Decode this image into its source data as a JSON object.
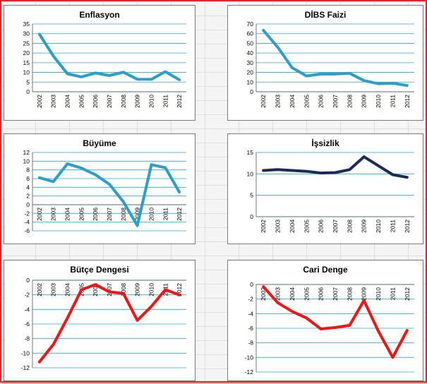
{
  "colors": {
    "blue": "#2b9fc9",
    "navy": "#1b2a5a",
    "red": "#f01414",
    "grid": "#2aa7cf"
  },
  "chart_data": [
    {
      "type": "line",
      "title": "Enflasyon",
      "color": "#2b9fc9",
      "x": [
        "2002",
        "2003",
        "2004",
        "2005",
        "2006",
        "2007",
        "2008",
        "2009",
        "2010",
        "2011",
        "2012"
      ],
      "values": [
        29.7,
        18.4,
        9.3,
        7.7,
        9.7,
        8.4,
        10.1,
        6.5,
        6.4,
        10.4,
        6.2
      ],
      "ylim": [
        0,
        35
      ],
      "yticks": [
        "0",
        "5",
        "10",
        "15",
        "20",
        "25",
        "30",
        "35"
      ],
      "xlabel_position": "below",
      "grid": true
    },
    {
      "type": "line",
      "title": "DİBS Faizi",
      "color": "#2b9fc9",
      "x": [
        "2002",
        "2003",
        "2004",
        "2005",
        "2006",
        "2007",
        "2008",
        "2009",
        "2010",
        "2011",
        "2012"
      ],
      "values": [
        63.5,
        46,
        24.9,
        16.3,
        18.3,
        18.3,
        19.1,
        11.5,
        8.3,
        8.8,
        6.5
      ],
      "ylim": [
        0,
        70
      ],
      "yticks": [
        "0",
        "10",
        "20",
        "30",
        "40",
        "50",
        "60",
        "70"
      ],
      "xlabel_position": "below",
      "grid": true
    },
    {
      "type": "line",
      "title": "Büyüme",
      "color": "#2b9fc9",
      "x": [
        "2002",
        "2003",
        "2004",
        "2005",
        "2006",
        "2007",
        "2008",
        "2009",
        "2010",
        "2011",
        "2012"
      ],
      "values": [
        6.2,
        5.3,
        9.4,
        8.4,
        6.9,
        4.7,
        0.7,
        -4.8,
        9.2,
        8.5,
        2.9
      ],
      "ylim": [
        -6,
        12
      ],
      "yticks": [
        "-6",
        "-4",
        "-2",
        "0",
        "2",
        "4",
        "6",
        "8",
        "10",
        "12"
      ],
      "xlabel_position": "zero",
      "grid": true
    },
    {
      "type": "line",
      "title": "İşsizlik",
      "color": "#1b2a5a",
      "x": [
        "2002",
        "2003",
        "2004",
        "2005",
        "2006",
        "2007",
        "2008",
        "2009",
        "2010",
        "2011",
        "2012"
      ],
      "values": [
        10.8,
        11,
        10.8,
        10.6,
        10.2,
        10.3,
        11,
        14,
        11.9,
        9.8,
        9.2
      ],
      "ylim": [
        0,
        15
      ],
      "yticks": [
        "0",
        "5",
        "10",
        "15"
      ],
      "xlabel_position": "below",
      "grid": true
    },
    {
      "type": "line",
      "title": "Bütçe Dengesi",
      "color": "#f01414",
      "x": [
        "2002",
        "2003",
        "2004",
        "2005",
        "2006",
        "2007",
        "2008",
        "2009",
        "2010",
        "2011",
        "2012"
      ],
      "values": [
        -11.2,
        -8.8,
        -5.2,
        -1.3,
        -0.6,
        -1.6,
        -1.8,
        -5.5,
        -3.6,
        -1.3,
        -2
      ],
      "ylim": [
        -12,
        0
      ],
      "yticks": [
        "-12",
        "-10",
        "-8",
        "-6",
        "-4",
        "-2",
        "0"
      ],
      "xlabel_position": "top",
      "grid": true
    },
    {
      "type": "line",
      "title": "Cari Denge",
      "color": "#f01414",
      "x": [
        "2002",
        "2003",
        "2004",
        "2005",
        "2006",
        "2007",
        "2008",
        "2009",
        "2010",
        "2011",
        "2012"
      ],
      "values": [
        -0.3,
        -2.5,
        -3.7,
        -4.6,
        -6.1,
        -5.9,
        -5.6,
        -2.2,
        -6.4,
        -10,
        -6.3
      ],
      "ylim": [
        -12,
        0
      ],
      "yticks": [
        "-12",
        "-10",
        "-8",
        "-6",
        "-4",
        "-2",
        "0"
      ],
      "xlabel_position": "top",
      "grid": true
    }
  ]
}
